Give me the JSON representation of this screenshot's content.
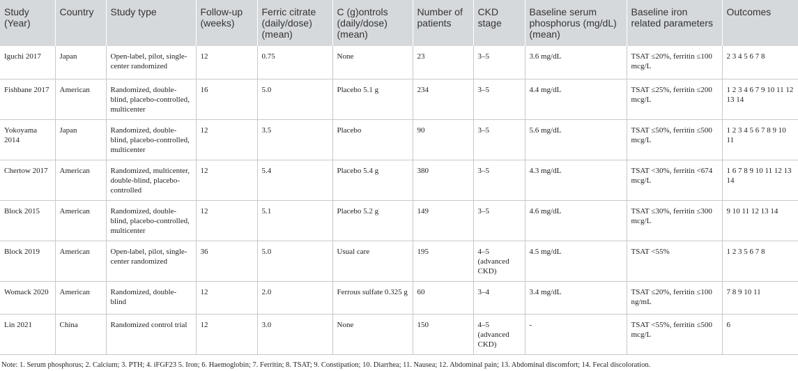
{
  "table": {
    "headers": [
      "Study (Year)",
      "Country",
      "Study type",
      "Follow-up (weeks)",
      "Ferric citrate (daily/dose) (mean)",
      "C (g)ontrols (daily/dose) (mean)",
      "Number of patients",
      "CKD stage",
      "Baseline serum phosphorus (mg/dL) (mean)",
      "Baseline iron related parameters",
      "Outcomes"
    ],
    "rows": [
      [
        "Iguchi 2017",
        "Japan",
        "Open-label, pilot, single-center randomized",
        "12",
        "0.75",
        "None",
        "23",
        "3–5",
        "3.6 mg/dL",
        "TSAT ≤20%, ferritin ≤100 mcg/L",
        "2 3 4 5 6 7 8"
      ],
      [
        "Fishbane 2017",
        "American",
        "Randomized, double-blind, placebo-controlled, multicenter",
        "16",
        "5.0",
        "Placebo 5.1 g",
        "234",
        "3–5",
        "4.4 mg/dL",
        "TSAT ≤25%, ferritin ≤200 mcg/L",
        "1 2 3 4 6 7 9 10 11 12 13 14"
      ],
      [
        "Yokoyama 2014",
        "Japan",
        "Randomized, double-blind, placebo-controlled, multicenter",
        "12",
        "3.5",
        "Placebo",
        "90",
        "3–5",
        "5.6 mg/dL",
        "TSAT ≤50%, ferritin ≤500 mcg/L",
        "1 2 3 4 5 6 7 8 9 10 11"
      ],
      [
        "Chertow 2017",
        "American",
        "Randomized, multicenter, double-blind, placebo-controlled",
        "12",
        "5.4",
        "Placebo 5.4 g",
        "380",
        "3–5",
        "4.3 mg/dL",
        "TSAT <30%, ferritin <674 mcg/L",
        "1 6 7 8 9 10 11 12 13 14"
      ],
      [
        "Block 2015",
        "American",
        "Randomized, double-blind, placebo-controlled, multicenter",
        "12",
        "5.1",
        "Placebo 5.2 g",
        "149",
        "3–5",
        "4.6 mg/dL",
        "TSAT ≤30%, ferritin ≤300 mcg/L",
        "9 10 11 12 13 14"
      ],
      [
        "Block 2019",
        "American",
        "Open-label, pilot, single-center randomized",
        "36",
        "5.0",
        "Usual care",
        "195",
        "4–5 (advanced CKD)",
        "4.5 mg/dL",
        "TSAT <55%",
        "1 2 3 5 6 7 8"
      ],
      [
        "Womack 2020",
        "American",
        "Randomized, double-blind",
        "12",
        "2.0",
        "Ferrous sulfate 0.325 g",
        "60",
        "3–4",
        "3.4 mg/dL",
        "TSAT ≤20%, ferritin ≤100 ng/mL",
        "7 8 9 10 11"
      ],
      [
        "Lin 2021",
        "China",
        "Randomized control trial",
        "12",
        "3.0",
        "None",
        "150",
        "4–5 (advanced CKD)",
        "-",
        "TSAT <55%, ferritin ≤500 mcg/L",
        "6"
      ]
    ]
  },
  "note": "Note: 1. Serum phosphorus; 2. Calcium; 3. PTH; 4. iFGF23 5. Iron; 6. Haemoglobin; 7. Ferritin; 8. TSAT; 9. Constipation; 10. Diarrhea; 11. Nausea; 12. Abdominal pain; 13. Abdominal discomfort; 14. Fecal discoloration."
}
